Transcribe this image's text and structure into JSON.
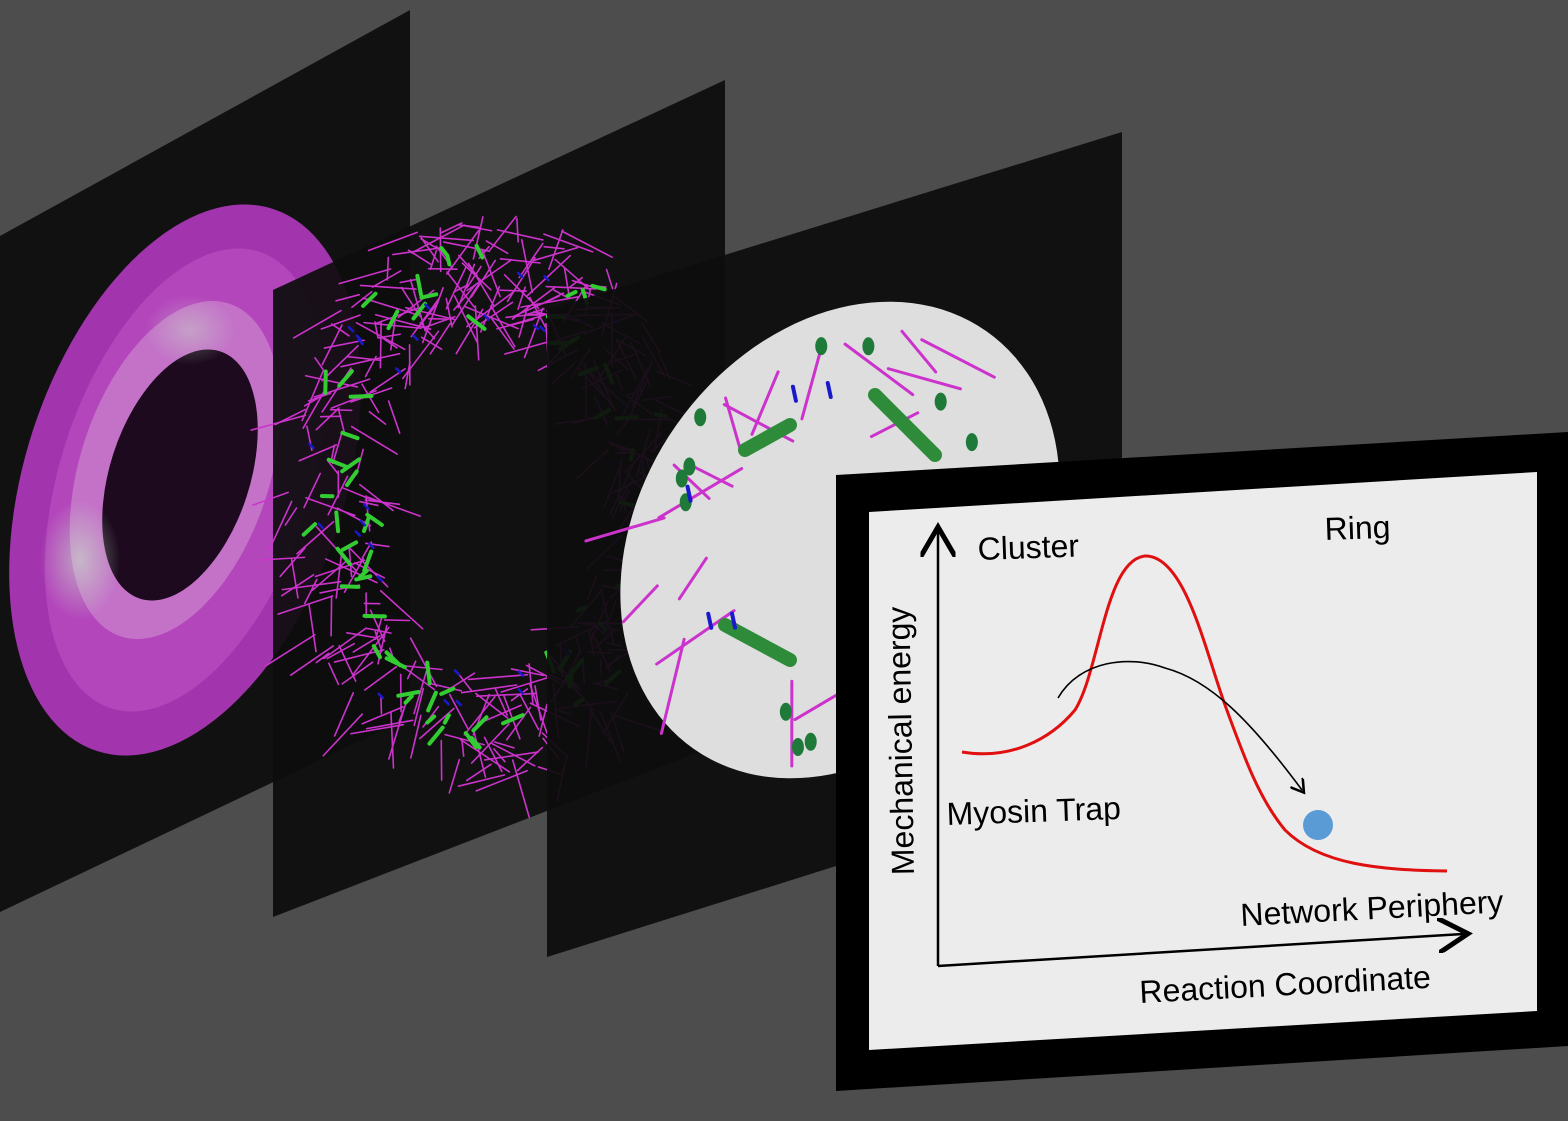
{
  "colors": {
    "background": "#4d4d4d",
    "panel": "#151515",
    "actin": "#cc33cc",
    "myosin": "#33cc33",
    "crosslinker": "#1a1acc",
    "energy_curve": "#e01010",
    "state_marker": "#5b9bd5"
  },
  "plot": {
    "ylabel": "Mechanical energy",
    "xlabel": "Reaction Coordinate",
    "states": {
      "cluster": "Cluster",
      "ring": "Ring",
      "myosin_trap": "Myosin Trap",
      "network_periphery": "Network Periphery"
    }
  },
  "icons": {
    "arrow": "curved-transition-arrow-icon",
    "state": "circle-state-marker-icon"
  }
}
